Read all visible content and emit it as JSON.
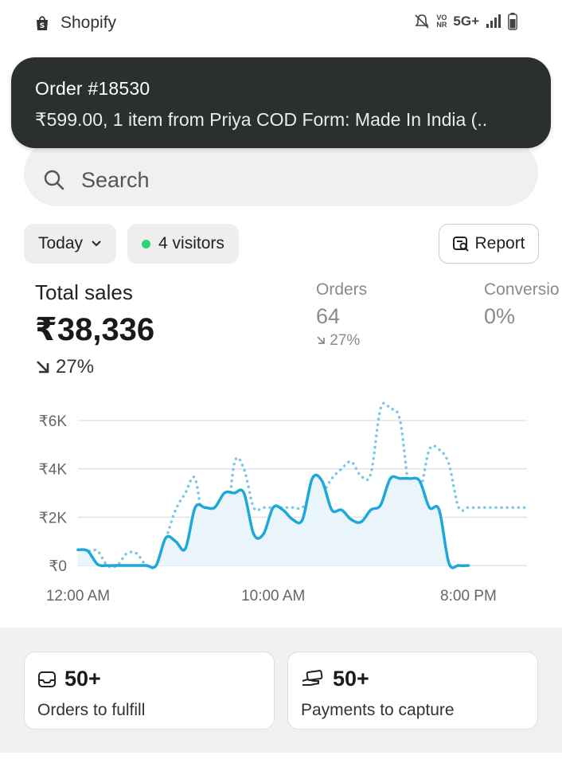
{
  "status_bar": {
    "app_name": "Shopify",
    "network": "5G+"
  },
  "notification": {
    "title": "Order #18530",
    "body": "₹599.00, 1 item from Priya COD Form: Made In India (.."
  },
  "search": {
    "placeholder": "Search"
  },
  "filters": {
    "date_label": "Today",
    "visitors_label": "4 visitors",
    "report_label": "Report"
  },
  "metrics": {
    "total_sales": {
      "label": "Total sales",
      "value": "₹38,336",
      "change": "27%"
    },
    "orders": {
      "label": "Orders",
      "value": "64",
      "change": "27%"
    },
    "conversion": {
      "label": "Conversio",
      "value": "0%"
    }
  },
  "chart_data": {
    "type": "line",
    "title": "",
    "xlabel": "",
    "ylabel": "",
    "y_tick_labels": [
      "₹0",
      "₹2K",
      "₹4K",
      "₹6K"
    ],
    "y_ticks": [
      0,
      2000,
      4000,
      6000
    ],
    "ylim": [
      0,
      6000
    ],
    "x_tick_labels": [
      "12:00 AM",
      "10:00 AM",
      "8:00 PM"
    ],
    "x_ticks": [
      0,
      10,
      20
    ],
    "xlim": [
      0,
      23
    ],
    "grid": true,
    "series": [
      {
        "style": "solid",
        "color": "#1ea7d9",
        "x": [
          0,
          0.5,
          1,
          1.5,
          2,
          2.5,
          3,
          3.5,
          4,
          4.5,
          5,
          5.5,
          6,
          6.5,
          7,
          7.5,
          8,
          8.5,
          9,
          9.5,
          10,
          10.5,
          11,
          11.5,
          12,
          12.5,
          13,
          13.5,
          14,
          14.5,
          15,
          15.5,
          16,
          16.5,
          17,
          17.5,
          18,
          18.5,
          19,
          19.5,
          20
        ],
        "y": [
          650,
          600,
          50,
          0,
          0,
          0,
          0,
          0,
          0,
          1150,
          1000,
          700,
          2400,
          2400,
          2400,
          3000,
          3000,
          3000,
          1300,
          1300,
          2400,
          2300,
          1900,
          1900,
          3600,
          3500,
          2300,
          2300,
          1900,
          1800,
          2300,
          2500,
          3600,
          3600,
          3600,
          3500,
          2400,
          2300,
          100,
          0,
          0
        ]
      },
      {
        "style": "dotted",
        "color": "#7cc6e8",
        "x": [
          0,
          0.5,
          1,
          1.5,
          2,
          2.5,
          3,
          3.5,
          4,
          4.5,
          5,
          5.5,
          6,
          6.5,
          7,
          7.5,
          8,
          8.5,
          9,
          9.5,
          10,
          10.5,
          11,
          11.5,
          12,
          12.5,
          13,
          13.5,
          14,
          14.5,
          15,
          15.5,
          16,
          16.5,
          17,
          17.5,
          18,
          18.5,
          19,
          19.5,
          20,
          20.5,
          21,
          21.5,
          22,
          22.5,
          23
        ],
        "y": [
          650,
          600,
          600,
          0,
          0,
          500,
          500,
          0,
          0,
          1100,
          2300,
          3000,
          3600,
          1300,
          1000,
          600,
          4200,
          4000,
          2400,
          2400,
          2400,
          2400,
          2400,
          2400,
          3000,
          3000,
          3600,
          4000,
          4300,
          3700,
          3800,
          6500,
          6500,
          6000,
          3000,
          3000,
          4800,
          4800,
          4200,
          2400,
          2400,
          2400,
          2400,
          2400,
          2400,
          2400,
          2400
        ]
      }
    ]
  },
  "cards": [
    {
      "count": "50+",
      "label": "Orders to fulfill",
      "icon": "inbox-icon"
    },
    {
      "count": "50+",
      "label": "Payments to capture",
      "icon": "payment-hand-icon"
    }
  ]
}
